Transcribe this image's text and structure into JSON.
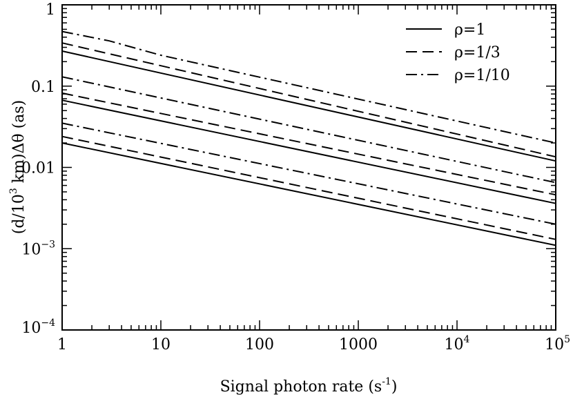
{
  "chart_data": {
    "type": "line",
    "xlabel": "Signal photon rate (s",
    "xlabel_sup": "-1",
    "xlabel_close": ")",
    "ylabel_pre": "(d/10",
    "ylabel_sup": "3",
    "ylabel_post": " km)Δθ (as)",
    "xscale": "log",
    "yscale": "log",
    "xlim": [
      1,
      100000
    ],
    "ylim": [
      0.0001,
      1
    ],
    "x_ticks": [
      {
        "value": 1,
        "label": "1"
      },
      {
        "value": 10,
        "label": "10"
      },
      {
        "value": 100,
        "label": "100"
      },
      {
        "value": 1000,
        "label": "1000"
      },
      {
        "value": 10000,
        "base": "10",
        "exp": "4"
      },
      {
        "value": 100000,
        "base": "10",
        "exp": "5"
      }
    ],
    "y_ticks": [
      {
        "value": 0.0001,
        "base": "10",
        "exp": "−4"
      },
      {
        "value": 0.001,
        "base": "10",
        "exp": "−3"
      },
      {
        "value": 0.01,
        "label": "0.01"
      },
      {
        "value": 0.1,
        "label": "0.1"
      },
      {
        "value": 1,
        "label": "1"
      }
    ],
    "grid": false,
    "legend_position": "top-right",
    "legend": [
      {
        "label": "ρ=1",
        "style": "solid"
      },
      {
        "label": "ρ=1/3",
        "style": "dashed"
      },
      {
        "label": "ρ=1/10",
        "style": "dashdot"
      }
    ],
    "series": [
      {
        "style": "solid",
        "x": [
          1,
          100000
        ],
        "y": [
          0.27,
          0.012
        ]
      },
      {
        "style": "dashed",
        "x": [
          1,
          100000
        ],
        "y": [
          0.34,
          0.0135
        ]
      },
      {
        "style": "dashdot",
        "x": [
          1,
          3,
          10,
          100000
        ],
        "y": [
          0.47,
          0.36,
          0.24,
          0.02
        ]
      },
      {
        "style": "solid",
        "x": [
          1,
          100000
        ],
        "y": [
          0.067,
          0.0036
        ]
      },
      {
        "style": "dashed",
        "x": [
          1,
          100000
        ],
        "y": [
          0.082,
          0.0046
        ]
      },
      {
        "style": "dashdot",
        "x": [
          1,
          100000
        ],
        "y": [
          0.13,
          0.0065
        ]
      },
      {
        "style": "solid",
        "x": [
          1,
          100000
        ],
        "y": [
          0.02,
          0.0011
        ]
      },
      {
        "style": "dashed",
        "x": [
          1,
          100000
        ],
        "y": [
          0.024,
          0.0013
        ]
      },
      {
        "style": "dashdot",
        "x": [
          1,
          100000
        ],
        "y": [
          0.035,
          0.002
        ]
      }
    ]
  }
}
